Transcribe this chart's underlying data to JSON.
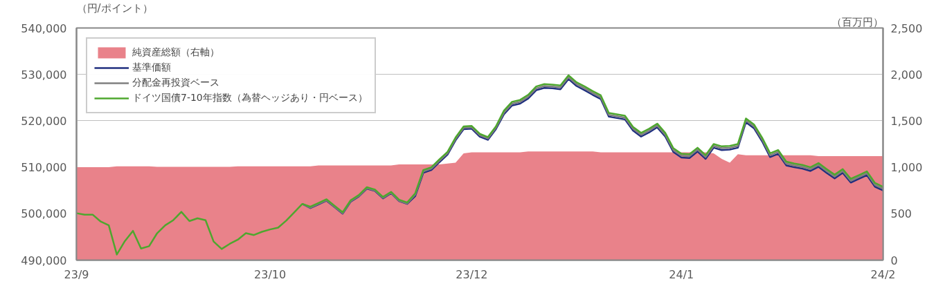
{
  "chart_data": {
    "type": "line",
    "ylabel": "（円/ポイント）",
    "y2label": "（百万円）",
    "categories": [
      "23/9",
      null,
      null,
      null,
      null,
      null,
      null,
      null,
      null,
      null,
      null,
      null,
      null,
      null,
      null,
      null,
      null,
      null,
      null,
      null,
      null,
      null,
      null,
      null,
      "23/10",
      null,
      null,
      null,
      null,
      null,
      null,
      null,
      null,
      null,
      null,
      null,
      null,
      null,
      null,
      null,
      null,
      null,
      null,
      null,
      null,
      null,
      null,
      null,
      null,
      "23/12",
      null,
      null,
      null,
      null,
      null,
      null,
      null,
      null,
      null,
      null,
      null,
      null,
      null,
      null,
      null,
      null,
      null,
      null,
      null,
      null,
      null,
      null,
      null,
      null,
      null,
      "24/1",
      null,
      null,
      null,
      null,
      null,
      null,
      null,
      null,
      null,
      null,
      null,
      null,
      null,
      null,
      null,
      null,
      null,
      null,
      null,
      null,
      null,
      null,
      null,
      null,
      "24/2"
    ],
    "ylim": [
      490000,
      540000
    ],
    "yticks": [
      {
        "value": 490000,
        "label": "490,000"
      },
      {
        "value": 500000,
        "label": "500,000"
      },
      {
        "value": 510000,
        "label": "510,000"
      },
      {
        "value": 520000,
        "label": "520,000"
      },
      {
        "value": 530000,
        "label": "530,000"
      },
      {
        "value": 540000,
        "label": "540,000"
      }
    ],
    "y2lim": [
      0,
      2500
    ],
    "y2ticks": [
      0,
      500,
      {
        "value": 1000,
        "label": "1,000"
      },
      {
        "value": 1500,
        "label": "1,500"
      },
      {
        "value": 2000,
        "label": "2,000"
      },
      {
        "value": 2500,
        "label": "2,500"
      }
    ],
    "grid": "y",
    "legend": "top left",
    "line_style": "solid",
    "series": [
      {
        "name": "純資産総額（右軸）",
        "type": "area",
        "axis": "y2",
        "color": "#e9828a",
        "values": [
          1000,
          1000,
          1000,
          1000,
          1000,
          1010,
          1010,
          1010,
          1010,
          1010,
          1005,
          1005,
          1005,
          1005,
          1005,
          1005,
          1005,
          1005,
          1005,
          1005,
          1010,
          1010,
          1010,
          1010,
          1010,
          1010,
          1010,
          1010,
          1010,
          1010,
          1020,
          1020,
          1020,
          1020,
          1020,
          1020,
          1020,
          1020,
          1020,
          1020,
          1030,
          1030,
          1030,
          1030,
          1030,
          1030,
          1040,
          1050,
          1150,
          1160,
          1160,
          1160,
          1160,
          1160,
          1160,
          1160,
          1170,
          1170,
          1170,
          1170,
          1170,
          1170,
          1170,
          1170,
          1170,
          1160,
          1160,
          1160,
          1160,
          1160,
          1160,
          1160,
          1160,
          1160,
          1160,
          1160,
          1160,
          1160,
          1160,
          1150,
          1090,
          1050,
          1140,
          1130,
          1130,
          1130,
          1130,
          1130,
          1130,
          1130,
          1130,
          1130,
          1120,
          1120,
          1120,
          1120,
          1120,
          1120,
          1120,
          1120,
          1120
        ]
      },
      {
        "name": "基準価額",
        "color": "#1f2f7f",
        "values": [
          null,
          null,
          null,
          null,
          null,
          null,
          null,
          null,
          null,
          null,
          null,
          null,
          null,
          null,
          null,
          null,
          null,
          null,
          null,
          null,
          null,
          null,
          null,
          null,
          null,
          null,
          null,
          null,
          502100,
          501200,
          502000,
          502800,
          501400,
          500000,
          502600,
          503700,
          505400,
          504900,
          503300,
          504400,
          502700,
          502100,
          503800,
          508800,
          509400,
          511100,
          512700,
          515800,
          518200,
          518300,
          516600,
          515900,
          518200,
          521400,
          523300,
          523700,
          524800,
          526600,
          527100,
          527000,
          526800,
          529000,
          527500,
          526600,
          525600,
          524700,
          520900,
          520600,
          520300,
          517900,
          516600,
          517500,
          518600,
          516600,
          513300,
          512100,
          512000,
          513400,
          511800,
          514200,
          513700,
          513800,
          514200,
          519700,
          518400,
          515600,
          512200,
          512900,
          510400,
          510000,
          509700,
          509200,
          510100,
          508800,
          507600,
          508800,
          506700,
          507500,
          508300,
          505800,
          505000
        ]
      },
      {
        "name": "分配金再投資ベース",
        "color": "#7f7f7f",
        "values": [
          null,
          null,
          null,
          null,
          null,
          null,
          null,
          null,
          null,
          null,
          null,
          null,
          null,
          null,
          null,
          null,
          null,
          null,
          null,
          null,
          null,
          null,
          null,
          null,
          null,
          null,
          null,
          null,
          502100,
          501300,
          502100,
          502900,
          501500,
          500100,
          502700,
          503800,
          505500,
          505000,
          503400,
          504500,
          502800,
          502200,
          504100,
          509100,
          509700,
          511400,
          513000,
          516100,
          518500,
          518600,
          516900,
          516200,
          518500,
          521800,
          523700,
          524100,
          525200,
          527000,
          527500,
          527400,
          527200,
          529400,
          527900,
          527000,
          526000,
          525100,
          521300,
          521000,
          520700,
          518300,
          517000,
          517900,
          519000,
          517000,
          513700,
          512500,
          512400,
          513800,
          512200,
          514600,
          514100,
          514200,
          514600,
          520100,
          518800,
          516000,
          512600,
          513300,
          510800,
          510400,
          510100,
          509600,
          510500,
          509200,
          508000,
          509200,
          507100,
          507900,
          508700,
          506200,
          505400
        ]
      },
      {
        "name": "ドイツ国債7-10年指数（為替ヘッジあり・円ベース）",
        "color": "#4ea72e",
        "values": [
          500100,
          499800,
          499800,
          498300,
          497500,
          491200,
          494100,
          496300,
          492500,
          493000,
          495800,
          497500,
          498600,
          500400,
          498400,
          499000,
          498600,
          494000,
          492400,
          493500,
          494400,
          495800,
          495400,
          496100,
          496600,
          497000,
          498500,
          500300,
          502100,
          501500,
          502300,
          503100,
          501700,
          500300,
          502900,
          504000,
          505700,
          505200,
          503600,
          504700,
          503000,
          502400,
          504400,
          509400,
          510000,
          511700,
          513300,
          516400,
          518800,
          518900,
          517200,
          516500,
          518800,
          522200,
          524100,
          524500,
          525600,
          527400,
          527900,
          527800,
          527600,
          529800,
          528300,
          527400,
          526400,
          525500,
          521700,
          521400,
          521100,
          518700,
          517400,
          518300,
          519400,
          517400,
          514100,
          512900,
          512800,
          514200,
          512600,
          515000,
          514500,
          514600,
          515000,
          520500,
          519200,
          516400,
          513000,
          513700,
          511200,
          510800,
          510500,
          510000,
          510900,
          509600,
          508400,
          509600,
          507500,
          508300,
          509100,
          506600,
          505800
        ]
      }
    ]
  }
}
